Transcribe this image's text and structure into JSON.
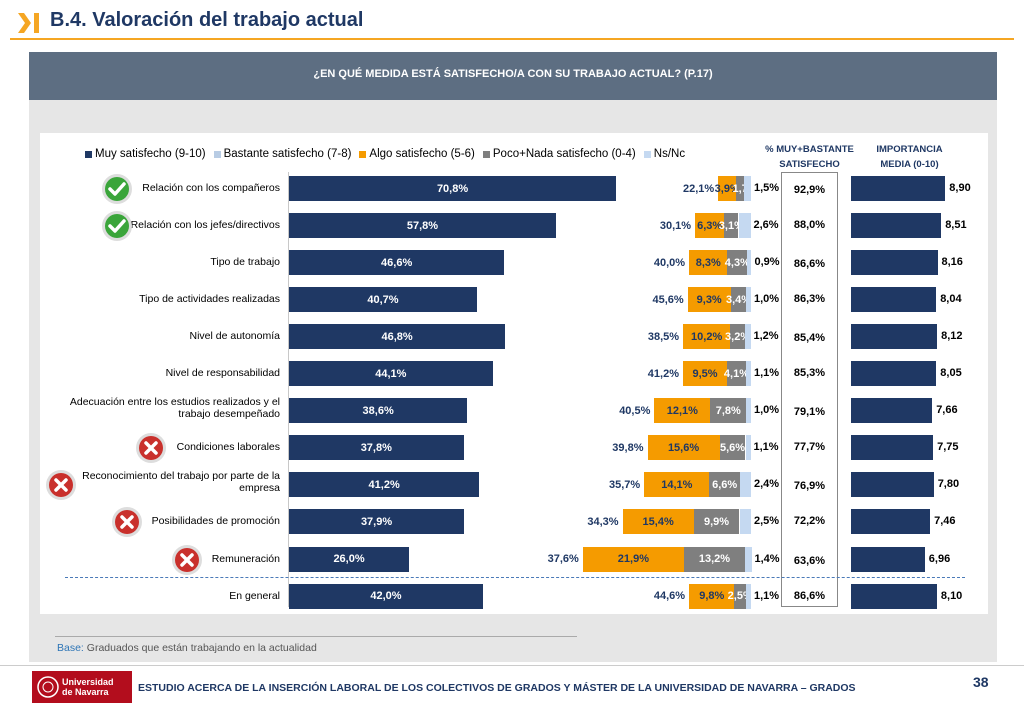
{
  "header": {
    "title": "B.4. Valoración del trabajo actual"
  },
  "banner": {
    "question": "¿EN QUÉ MEDIDA ESTÁ SATISFECHO/A CON SU TRABAJO ACTUAL? (P.17)"
  },
  "colors": {
    "muy": "#1f3864",
    "bastante": "#b8cce4",
    "algo": "#f59b00",
    "poco": "#7f7f7f",
    "nsnc": "#c5d9f1"
  },
  "chart_data": {
    "type": "bar",
    "stacked": true,
    "orientation": "horizontal",
    "legend": [
      "Muy satisfecho (9-10)",
      "Bastante satisfecho (7-8)",
      "Algo satisfecho (5-6)",
      "Poco+Nada satisfecho (0-4)",
      "Ns/Nc"
    ],
    "col_headers": {
      "satisfied": "% MUY+BASTANTE SATISFECHO",
      "importance": "IMPORTANCIA MEDIA (0-10)"
    },
    "rows": [
      {
        "label": "Relación con los compañeros",
        "icon": "check",
        "muy": 70.8,
        "muy_l": "70,8%",
        "bas": 22.1,
        "bas_l": "22,1%",
        "algo": 3.9,
        "algo_l": "3,9%",
        "poco": 1.7,
        "poco_l": "1,7",
        "ns": 1.5,
        "ns_l": "1,5%",
        "sat": "92,9%",
        "imp": 8.9,
        "imp_l": "8,90"
      },
      {
        "label": "Relación con los jefes/directivos",
        "icon": "check",
        "muy": 57.8,
        "muy_l": "57,8%",
        "bas": 30.1,
        "bas_l": "30,1%",
        "algo": 6.3,
        "algo_l": "6,3%",
        "poco": 3.1,
        "poco_l": "3,1%",
        "ns": 2.6,
        "ns_l": "2,6%",
        "sat": "88,0%",
        "imp": 8.51,
        "imp_l": "8,51"
      },
      {
        "label": "Tipo de trabajo",
        "icon": "",
        "muy": 46.6,
        "muy_l": "46,6%",
        "bas": 40.0,
        "bas_l": "40,0%",
        "algo": 8.3,
        "algo_l": "8,3%",
        "poco": 4.3,
        "poco_l": "4,3%",
        "ns": 0.9,
        "ns_l": "0,9%",
        "sat": "86,6%",
        "imp": 8.16,
        "imp_l": "8,16"
      },
      {
        "label": "Tipo de actividades realizadas",
        "icon": "",
        "muy": 40.7,
        "muy_l": "40,7%",
        "bas": 45.6,
        "bas_l": "45,6%",
        "algo": 9.3,
        "algo_l": "9,3%",
        "poco": 3.4,
        "poco_l": "3,4%",
        "ns": 1.0,
        "ns_l": "1,0%",
        "sat": "86,3%",
        "imp": 8.04,
        "imp_l": "8,04"
      },
      {
        "label": "Nivel de autonomía",
        "icon": "",
        "muy": 46.8,
        "muy_l": "46,8%",
        "bas": 38.5,
        "bas_l": "38,5%",
        "algo": 10.2,
        "algo_l": "10,2%",
        "poco": 3.2,
        "poco_l": "3,2%",
        "ns": 1.2,
        "ns_l": "1,2%",
        "sat": "85,4%",
        "imp": 8.12,
        "imp_l": "8,12"
      },
      {
        "label": "Nivel de responsabilidad",
        "icon": "",
        "muy": 44.1,
        "muy_l": "44,1%",
        "bas": 41.2,
        "bas_l": "41,2%",
        "algo": 9.5,
        "algo_l": "9,5%",
        "poco": 4.1,
        "poco_l": "4,1%",
        "ns": 1.1,
        "ns_l": "1,1%",
        "sat": "85,3%",
        "imp": 8.05,
        "imp_l": "8,05"
      },
      {
        "label": "Adecuación entre los estudios realizados y el trabajo desempeñado",
        "icon": "",
        "muy": 38.6,
        "muy_l": "38,6%",
        "bas": 40.5,
        "bas_l": "40,5%",
        "algo": 12.1,
        "algo_l": "12,1%",
        "poco": 7.8,
        "poco_l": "7,8%",
        "ns": 1.0,
        "ns_l": "1,0%",
        "sat": "79,1%",
        "imp": 7.66,
        "imp_l": "7,66"
      },
      {
        "label": "Condiciones laborales",
        "icon": "cross",
        "muy": 37.8,
        "muy_l": "37,8%",
        "bas": 39.8,
        "bas_l": "39,8%",
        "algo": 15.6,
        "algo_l": "15,6%",
        "poco": 5.6,
        "poco_l": "5,6%",
        "ns": 1.1,
        "ns_l": "1,1%",
        "sat": "77,7%",
        "imp": 7.75,
        "imp_l": "7,75"
      },
      {
        "label": "Reconocimiento del trabajo por parte de la empresa",
        "icon": "cross",
        "muy": 41.2,
        "muy_l": "41,2%",
        "bas": 35.7,
        "bas_l": "35,7%",
        "algo": 14.1,
        "algo_l": "14,1%",
        "poco": 6.6,
        "poco_l": "6,6%",
        "ns": 2.4,
        "ns_l": "2,4%",
        "sat": "76,9%",
        "imp": 7.8,
        "imp_l": "7,80"
      },
      {
        "label": "Posibilidades de promoción",
        "icon": "cross",
        "muy": 37.9,
        "muy_l": "37,9%",
        "bas": 34.3,
        "bas_l": "34,3%",
        "algo": 15.4,
        "algo_l": "15,4%",
        "poco": 9.9,
        "poco_l": "9,9%",
        "ns": 2.5,
        "ns_l": "2,5%",
        "sat": "72,2%",
        "imp": 7.46,
        "imp_l": "7,46"
      },
      {
        "label": "Remuneración",
        "icon": "cross",
        "muy": 26.0,
        "muy_l": "26,0%",
        "bas": 37.6,
        "bas_l": "37,6%",
        "algo": 21.9,
        "algo_l": "21,9%",
        "poco": 13.2,
        "poco_l": "13,2%",
        "ns": 1.4,
        "ns_l": "1,4%",
        "sat": "63,6%",
        "imp": 6.96,
        "imp_l": "6,96"
      },
      {
        "label": "En general",
        "icon": "",
        "muy": 42.0,
        "muy_l": "42,0%",
        "bas": 44.6,
        "bas_l": "44,6%",
        "algo": 9.8,
        "algo_l": "9,8%",
        "poco": 2.5,
        "poco_l": "2,5%",
        "ns": 1.1,
        "ns_l": "1,1%",
        "sat": "86,6%",
        "imp": 8.1,
        "imp_l": "8,10"
      }
    ]
  },
  "base": {
    "key": "Base:",
    "text": "Graduados que están trabajando en la actualidad"
  },
  "footer": {
    "logo_text": "Universidad de Navarra",
    "text": "ESTUDIO ACERCA DE LA INSERCIÓN LABORAL DE LOS COLECTIVOS DE GRADOS Y MÁSTER DE LA UNIVERSIDAD DE NAVARRA – GRADOS",
    "page": "38"
  }
}
